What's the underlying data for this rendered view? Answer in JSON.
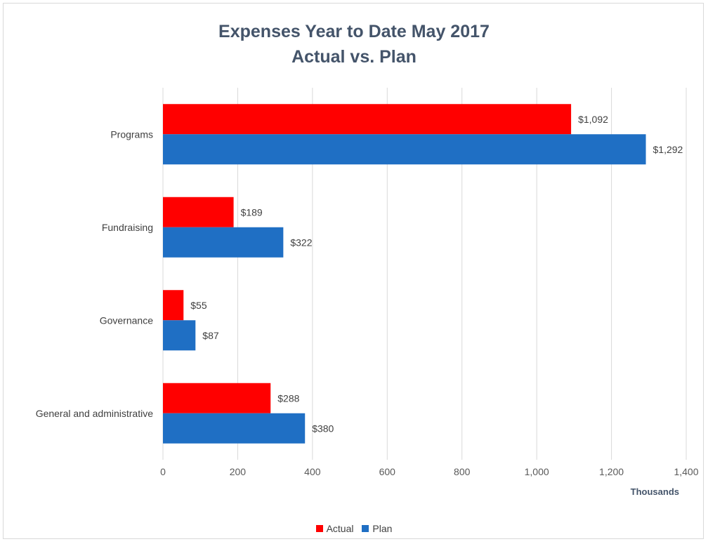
{
  "chart_data": {
    "type": "bar",
    "orientation": "horizontal",
    "title": "Expenses Year to Date May 2017",
    "subtitle": "Actual vs. Plan",
    "categories": [
      "Programs",
      "Fundraising",
      "Governance",
      "General and administrative"
    ],
    "series": [
      {
        "name": "Actual",
        "color": "#ff0000",
        "values": [
          1092,
          189,
          55,
          288
        ],
        "labels": [
          "$1,092",
          "$189",
          "$55",
          "$288"
        ]
      },
      {
        "name": "Plan",
        "color": "#1f6fc4",
        "values": [
          1292,
          322,
          87,
          380
        ],
        "labels": [
          "$1,292",
          "$322",
          "$87",
          "$380"
        ]
      }
    ],
    "xlim": [
      0,
      1400
    ],
    "x_ticks": [
      0,
      200,
      400,
      600,
      800,
      1000,
      1200,
      1400
    ],
    "x_tick_labels": [
      "0",
      "200",
      "400",
      "600",
      "800",
      "1,000",
      "1,200",
      "1,400"
    ],
    "xlabel": "Thousands",
    "grid": true,
    "legend": "bottom"
  }
}
